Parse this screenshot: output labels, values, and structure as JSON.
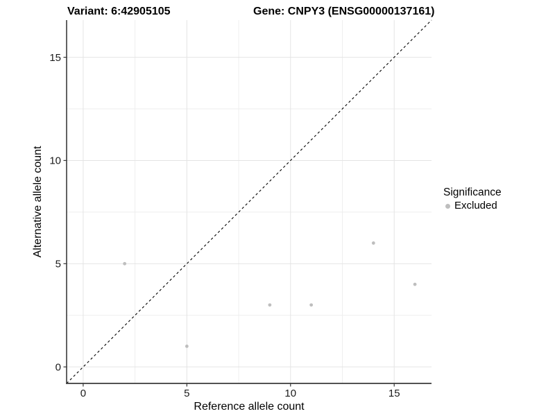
{
  "title": {
    "variant": "Variant: 6:42905105",
    "gene": "Gene: CNPY3 (ENSG00000137161)"
  },
  "chart_data": {
    "type": "scatter",
    "xlabel": "Reference allele count",
    "ylabel": "Alternative allele count",
    "xlim": [
      -0.8,
      16.8
    ],
    "ylim": [
      -0.8,
      16.8
    ],
    "x_ticks": [
      0,
      5,
      10,
      15
    ],
    "y_ticks": [
      0,
      5,
      10,
      15
    ],
    "x_minor_gridlines": [
      2.5,
      7.5,
      12.5
    ],
    "y_minor_gridlines": [
      2.5,
      7.5,
      12.5
    ],
    "grid": true,
    "identity_line": {
      "type": "y=x",
      "style": "dashed",
      "color": "#000000"
    },
    "series": [
      {
        "name": "Excluded",
        "color": "#bebebe",
        "points": [
          {
            "x": 2,
            "y": 5
          },
          {
            "x": 5,
            "y": 1
          },
          {
            "x": 9,
            "y": 3
          },
          {
            "x": 11,
            "y": 3
          },
          {
            "x": 14,
            "y": 6
          },
          {
            "x": 16,
            "y": 4
          }
        ]
      }
    ],
    "legend": {
      "position": "right",
      "title": "Significance",
      "items": [
        {
          "label": "Excluded",
          "color": "#bebebe"
        }
      ]
    }
  },
  "colors": {
    "background": "#ffffff",
    "grid_major": "#e4e4e4",
    "grid_minor": "#eeeeee",
    "axis_line": "#3a3a3a",
    "tick_mark": "#333333",
    "tick_label": "#1a1a1a",
    "point": "#bebebe",
    "identity_line": "#000000"
  }
}
